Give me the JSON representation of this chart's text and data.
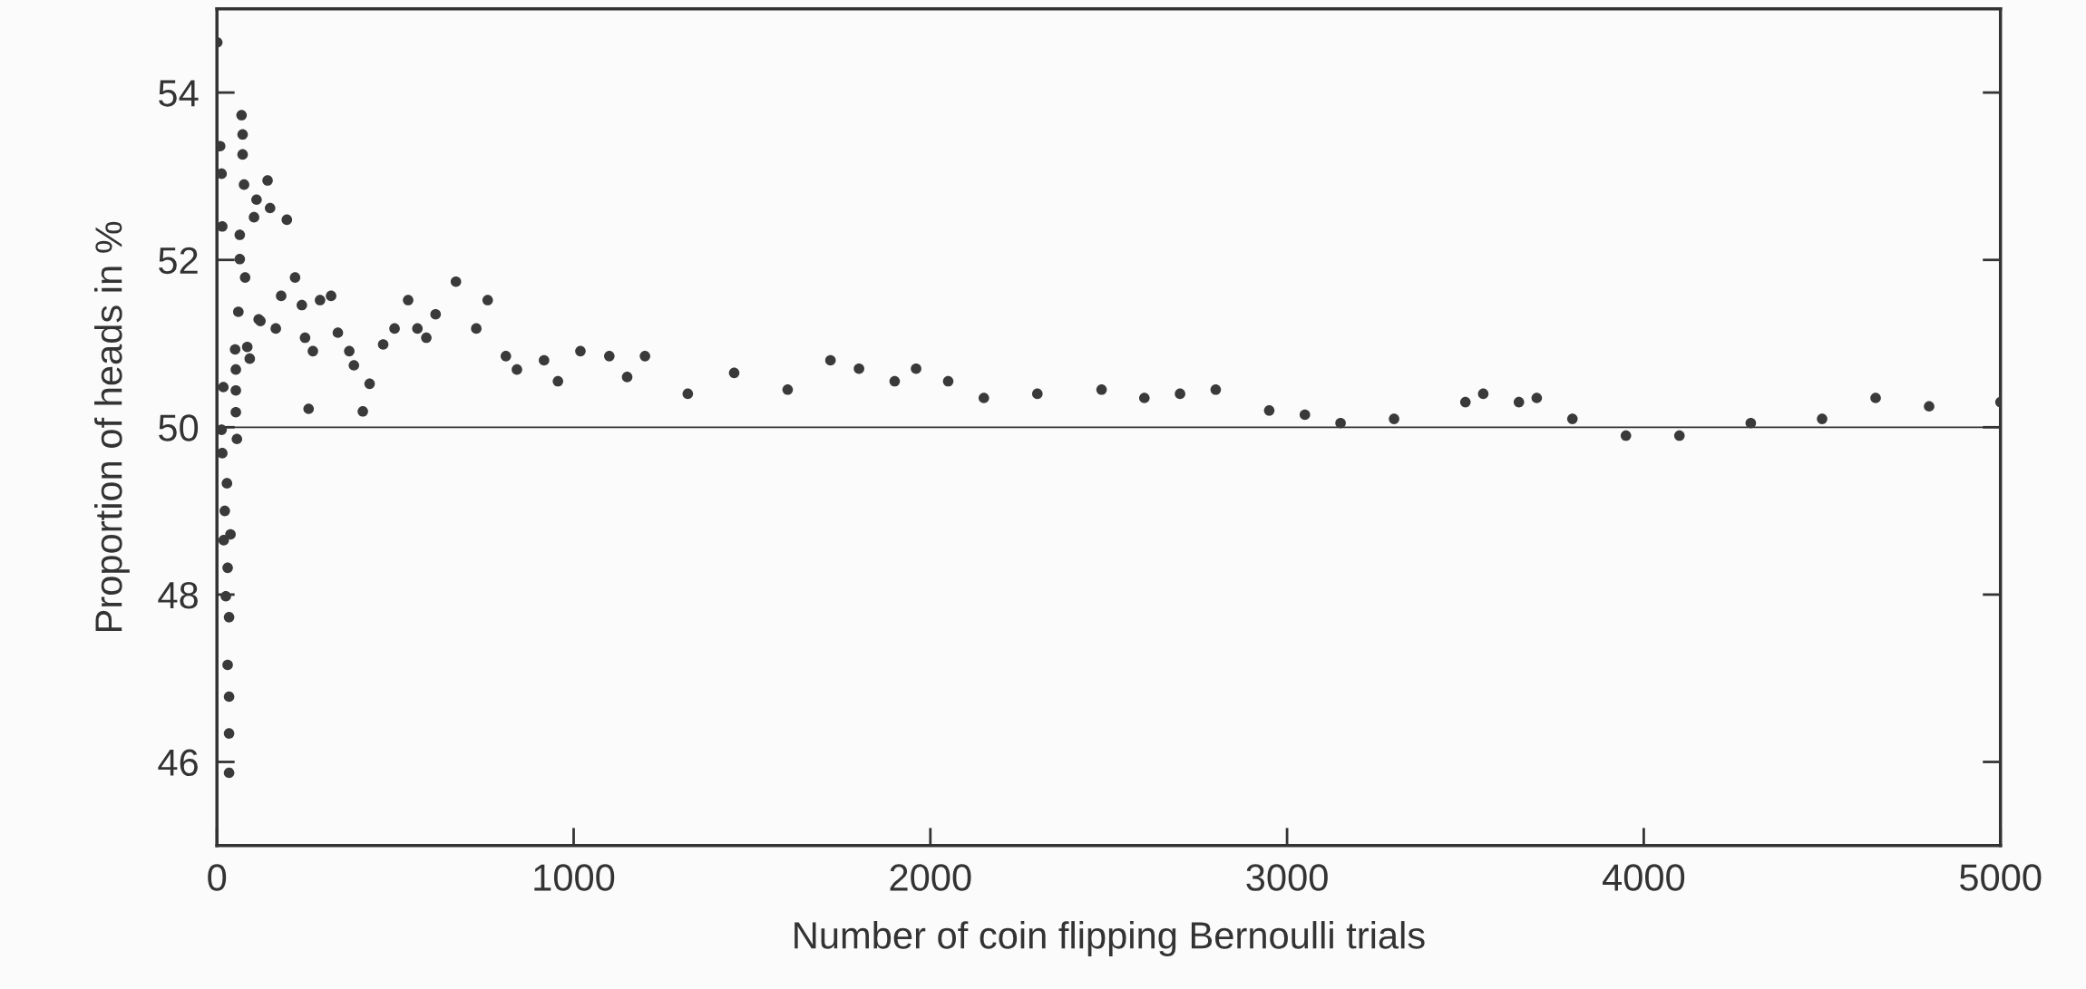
{
  "chart_data": {
    "type": "scatter",
    "xlabel": "Number of coin flipping Bernoulli trials",
    "ylabel": "Proportion of heads in %",
    "xlim": [
      0,
      5000
    ],
    "ylim": [
      45,
      55
    ],
    "xticks": [
      0,
      1000,
      2000,
      3000,
      4000,
      5000
    ],
    "yticks": [
      46,
      48,
      50,
      52,
      54
    ],
    "grid": false,
    "marker": "circle",
    "ref_lines": [
      {
        "axis": "y",
        "value": 50,
        "color": "#333333"
      }
    ],
    "series": [
      {
        "color": "#3a3a3a",
        "x": [
          1,
          9,
          13,
          15,
          18,
          13,
          15,
          28,
          22,
          38,
          19,
          30,
          25,
          34,
          30,
          34,
          34,
          34,
          51,
          53,
          53,
          53,
          56,
          60,
          64,
          64,
          69,
          72,
          72,
          76,
          79,
          85,
          92,
          104,
          111,
          117,
          122,
          142,
          149,
          165,
          180,
          196,
          219,
          238,
          247,
          257,
          269,
          289,
          320,
          339,
          371,
          384,
          409,
          428,
          466,
          498,
          536,
          562,
          587,
          613,
          670,
          727,
          759,
          810,
          841,
          917,
          956,
          1019,
          1100,
          1150,
          1200,
          1320,
          1450,
          1600,
          1720,
          1800,
          1900,
          1960,
          2050,
          2150,
          2300,
          2480,
          2600,
          2700,
          2800,
          2950,
          3050,
          3150,
          3300,
          3500,
          3550,
          3650,
          3700,
          3800,
          3950,
          4100,
          4300,
          4500,
          4650,
          4800,
          5000
        ],
        "values": [
          54.6,
          53.36,
          53.03,
          52.4,
          50.48,
          49.97,
          49.69,
          49.33,
          49.0,
          48.72,
          48.65,
          48.32,
          47.98,
          47.73,
          47.16,
          46.78,
          46.34,
          45.87,
          50.93,
          50.69,
          50.44,
          50.18,
          49.86,
          51.38,
          52.01,
          52.3,
          53.73,
          53.5,
          53.26,
          52.9,
          51.79,
          50.96,
          50.82,
          52.51,
          52.72,
          51.29,
          51.27,
          52.95,
          52.62,
          51.18,
          51.57,
          52.48,
          51.79,
          51.46,
          51.07,
          50.22,
          50.91,
          51.52,
          51.57,
          51.13,
          50.91,
          50.74,
          50.19,
          50.52,
          50.99,
          51.18,
          51.52,
          51.18,
          51.07,
          51.35,
          51.74,
          51.18,
          51.52,
          50.85,
          50.69,
          50.8,
          50.55,
          50.91,
          50.85,
          50.6,
          50.85,
          50.4,
          50.65,
          50.45,
          50.8,
          50.7,
          50.55,
          50.7,
          50.55,
          50.35,
          50.4,
          50.45,
          50.35,
          50.4,
          50.45,
          50.2,
          50.15,
          50.05,
          50.1,
          50.3,
          50.4,
          50.3,
          50.35,
          50.1,
          49.9,
          49.9,
          50.05,
          50.1,
          50.35,
          50.25,
          50.3
        ]
      }
    ]
  }
}
